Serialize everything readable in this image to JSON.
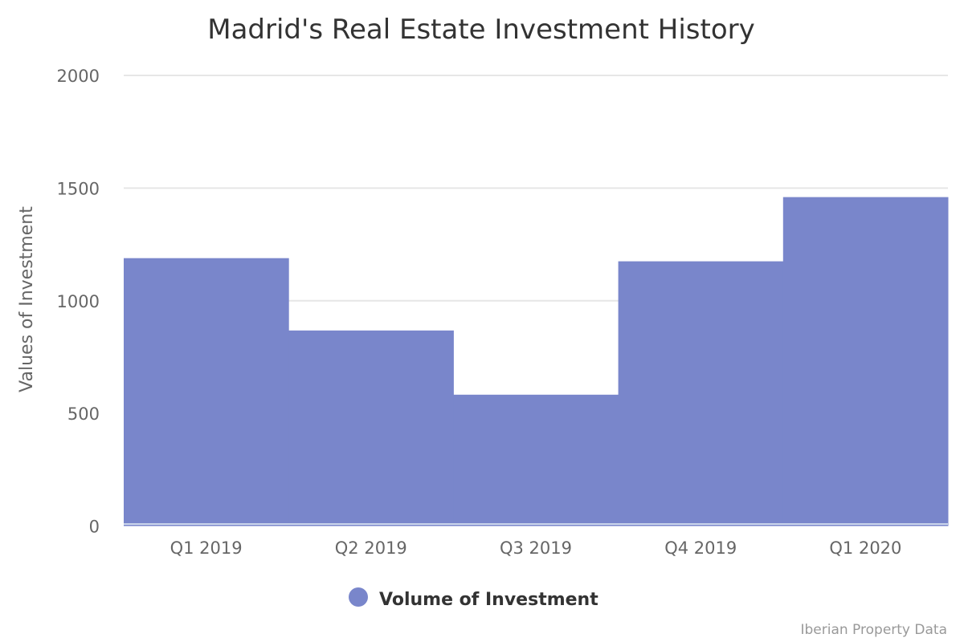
{
  "chart_data": {
    "type": "bar",
    "title": "Madrid's Real Estate Investment History",
    "xlabel": "",
    "ylabel": "Values of Investment",
    "categories": [
      "Q1 2019",
      "Q2 2019",
      "Q3 2019",
      "Q4 2019",
      "Q1 2020"
    ],
    "series": [
      {
        "name": "Volume of Investment",
        "values": [
          1189,
          868,
          583,
          1175,
          1460
        ],
        "color": "#7986CB"
      }
    ],
    "ylim": [
      0,
      2000
    ],
    "yticks": [
      0,
      500,
      1000,
      1500,
      2000
    ],
    "grid": true,
    "legend": "bottom-center",
    "credit": "Iberian Property Data"
  }
}
